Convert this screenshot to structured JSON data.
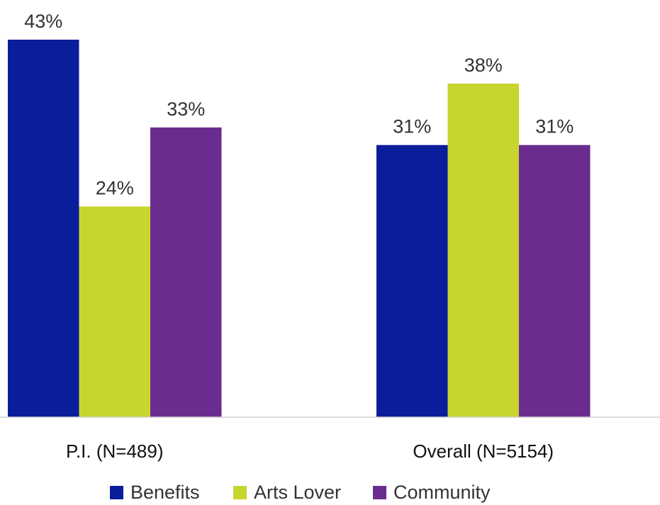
{
  "chart_data": {
    "type": "bar",
    "categories": [
      "P.I. (N=489)",
      "Overall (N=5154)"
    ],
    "series": [
      {
        "name": "Benefits",
        "color": "#0a1e9c",
        "values": [
          43,
          31
        ],
        "labels": [
          "43%",
          "31%"
        ]
      },
      {
        "name": "Arts Lover",
        "color": "#c8d52e",
        "values": [
          24,
          38
        ],
        "labels": [
          "24%",
          "38%"
        ]
      },
      {
        "name": "Community",
        "color": "#6a2d8f",
        "values": [
          33,
          31
        ],
        "labels": [
          "33%",
          "31%"
        ]
      }
    ],
    "ylim": [
      0,
      43
    ],
    "unit": "%",
    "grid": false,
    "legend_position": "bottom"
  }
}
